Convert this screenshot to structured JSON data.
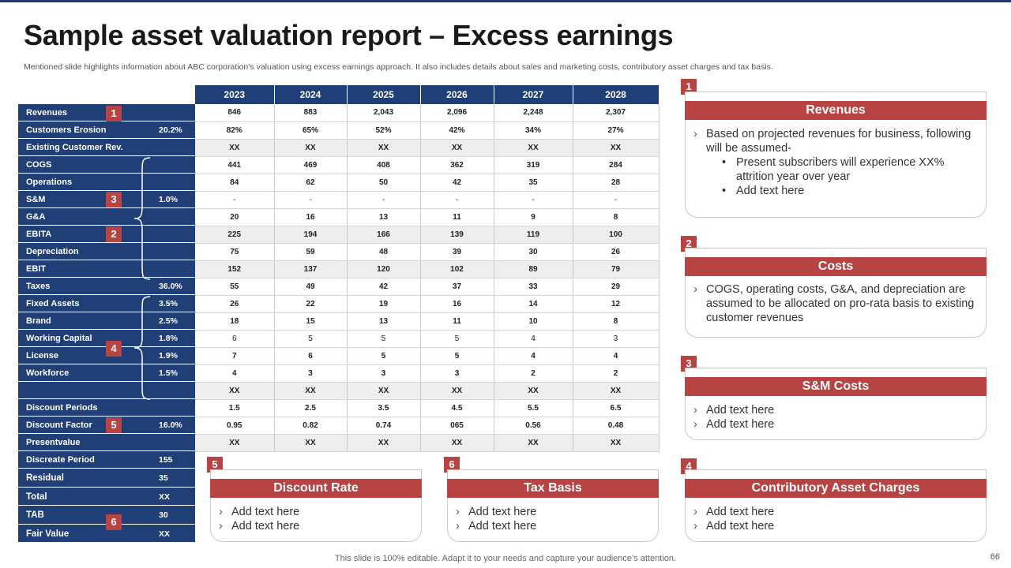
{
  "slide": {
    "title": "Sample asset valuation report – Excess earnings",
    "subtitle": "Mentioned slide highlights information about ABC corporation’s valuation using excess earnings approach. It also includes details about sales and marketing costs, contributory asset charges and tax basis.",
    "footer": "This slide is 100% editable. Adapt it to your needs and capture your audience’s attention.",
    "page_number": "66",
    "accent_color": "#b84343",
    "navy_color": "#1f3f76"
  },
  "table": {
    "years": [
      "2023",
      "2024",
      "2025",
      "2026",
      "2027",
      "2028"
    ],
    "rows": [
      {
        "label": "Revenues",
        "pct": "",
        "values": [
          "846",
          "883",
          "2,043",
          "2,096",
          "2,248",
          "2,307"
        ]
      },
      {
        "label": "Customers Erosion",
        "pct": "20.2%",
        "values": [
          "82%",
          "65%",
          "52%",
          "42%",
          "34%",
          "27%"
        ]
      },
      {
        "label": "Existing Customer Rev.",
        "pct": "",
        "values": [
          "XX",
          "XX",
          "XX",
          "XX",
          "XX",
          "XX"
        ]
      },
      {
        "label": "COGS",
        "pct": "",
        "values": [
          "441",
          "469",
          "408",
          "362",
          "319",
          "284"
        ]
      },
      {
        "label": "Operations",
        "pct": "",
        "values": [
          "84",
          "62",
          "50",
          "42",
          "35",
          "28"
        ]
      },
      {
        "label": "S&M",
        "pct": "1.0%",
        "values": [
          "-",
          "-",
          "-",
          "-",
          "-",
          "-"
        ]
      },
      {
        "label": "G&A",
        "pct": "",
        "values": [
          "20",
          "16",
          "13",
          "11",
          "9",
          "8"
        ]
      },
      {
        "label": "EBITA",
        "pct": "",
        "values": [
          "225",
          "194",
          "166",
          "139",
          "119",
          "100"
        ]
      },
      {
        "label": "Depreciation",
        "pct": "",
        "values": [
          "75",
          "59",
          "48",
          "39",
          "30",
          "26"
        ]
      },
      {
        "label": "EBIT",
        "pct": "",
        "values": [
          "152",
          "137",
          "120",
          "102",
          "89",
          "79"
        ]
      },
      {
        "label": "Taxes",
        "pct": "36.0%",
        "values": [
          "55",
          "49",
          "42",
          "37",
          "33",
          "29"
        ]
      },
      {
        "label": "Fixed Assets",
        "pct": "3.5%",
        "values": [
          "26",
          "22",
          "19",
          "16",
          "14",
          "12"
        ]
      },
      {
        "label": "Brand",
        "pct": "2.5%",
        "values": [
          "18",
          "15",
          "13",
          "11",
          "10",
          "8"
        ]
      },
      {
        "label": "Working Capital",
        "pct": "1.8%",
        "values": [
          "6",
          "5",
          "5",
          "5",
          "4",
          "3"
        ]
      },
      {
        "label": "License",
        "pct": "1.9%",
        "values": [
          "7",
          "6",
          "5",
          "5",
          "4",
          "4"
        ]
      },
      {
        "label": "Workforce",
        "pct": "1.5%",
        "values": [
          "4",
          "3",
          "3",
          "3",
          "2",
          "2"
        ]
      },
      {
        "label": "",
        "pct": "",
        "values": [
          "XX",
          "XX",
          "XX",
          "XX",
          "XX",
          "XX"
        ]
      },
      {
        "label": "Discount Periods",
        "pct": "",
        "values": [
          "1.5",
          "2.5",
          "3.5",
          "4.5",
          "5.5",
          "6.5"
        ]
      },
      {
        "label": "Discount Factor",
        "pct": "16.0%",
        "values": [
          "0.95",
          "0.82",
          "0.74",
          "065",
          "0.56",
          "0.48"
        ]
      },
      {
        "label": "Presentvalue",
        "pct": "",
        "values": [
          "XX",
          "XX",
          "XX",
          "XX",
          "XX",
          "XX"
        ]
      }
    ],
    "summary_rows": [
      {
        "label": "Discreate Period",
        "value": "155"
      },
      {
        "label": "Residual",
        "value": "35"
      },
      {
        "label": "Total",
        "value": "XX"
      },
      {
        "label": "TAB",
        "value": "30"
      },
      {
        "label": "Fair Value",
        "value": "XX"
      }
    ]
  },
  "markers": {
    "revenues": "1",
    "ebita": "2",
    "s_and_m": "3",
    "license": "4",
    "discount_factor": "5",
    "tab": "6"
  },
  "cards": {
    "revenues": {
      "number": "1",
      "title": "Revenues",
      "intro": "Based on projected revenues for business, following will be assumed-",
      "subpoints": [
        "Present subscribers will experience XX% attrition year over year",
        "Add text here"
      ]
    },
    "costs": {
      "number": "2",
      "title": "Costs",
      "text": "COGS, operating costs, G&A, and depreciation are assumed to be allocated on pro-rata basis to existing customer revenues"
    },
    "sm_costs": {
      "number": "3",
      "title": "S&M Costs",
      "bullets": [
        "Add text here",
        "Add text here"
      ]
    },
    "contributory": {
      "number": "4",
      "title": "Contributory Asset Charges",
      "bullets": [
        "Add text here",
        "Add text here"
      ]
    },
    "discount_rate": {
      "number": "5",
      "title": "Discount Rate",
      "bullets": [
        "Add text here",
        "Add text here"
      ]
    },
    "tax_basis": {
      "number": "6",
      "title": "Tax Basis",
      "bullets": [
        "Add text here",
        "Add text here"
      ]
    }
  }
}
